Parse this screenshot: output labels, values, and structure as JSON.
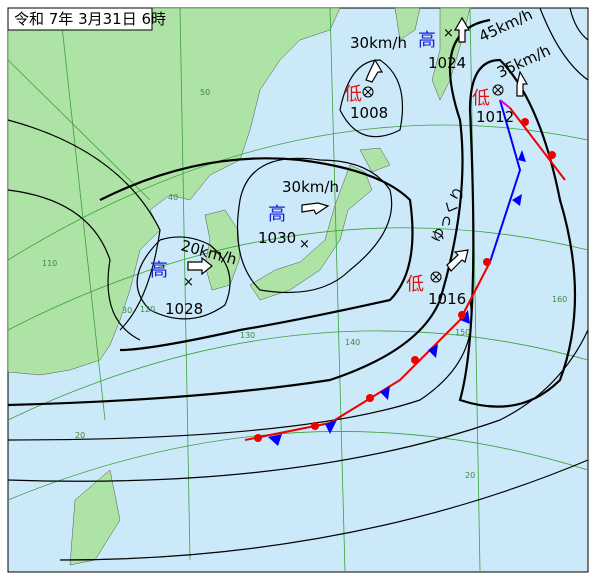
{
  "header": {
    "title": "令和 7年 3月31日 6時"
  },
  "systems": [
    {
      "symbol": "高",
      "pressure": 1024,
      "motion": "45km/h"
    },
    {
      "symbol": "低",
      "pressure": 1008,
      "motion": "30km/h"
    },
    {
      "symbol": "低",
      "pressure": 1012,
      "motion": "35km/h"
    },
    {
      "symbol": "高",
      "pressure": 1030,
      "motion": "30km/h"
    },
    {
      "symbol": "高",
      "pressure": 1028,
      "motion": "20km/h"
    },
    {
      "symbol": "低",
      "pressure": 1016,
      "motion": "ゆっくり"
    }
  ],
  "grid_labels": [
    "50",
    "40",
    "30",
    "20",
    "140",
    "150",
    "160",
    "130",
    "120",
    "110",
    "20"
  ]
}
